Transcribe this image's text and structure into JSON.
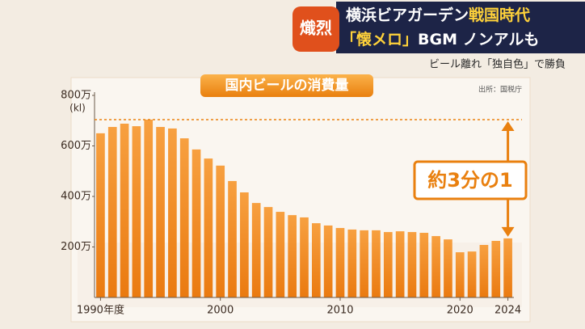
{
  "header": {
    "badge": "熾烈",
    "line1": [
      "横浜ビアガーデン",
      "戦国時代"
    ],
    "line2": [
      "「懐メロ」",
      "BGM ノンアルも"
    ],
    "subline": "ビール離れ「独自色」で勝負"
  },
  "chart_data": {
    "type": "bar",
    "title": "国内ビールの消費量",
    "source": "出所：国税庁",
    "ylabel": "(kl)",
    "annotation": "約3分の1",
    "categories": [
      "1990年度",
      null,
      null,
      null,
      null,
      null,
      null,
      null,
      null,
      null,
      "2000",
      null,
      null,
      null,
      null,
      null,
      null,
      null,
      null,
      null,
      "2010",
      null,
      null,
      null,
      null,
      null,
      null,
      null,
      null,
      null,
      "2020",
      null,
      null,
      null,
      "2024"
    ],
    "values": [
      650,
      675,
      688,
      678,
      704,
      675,
      669,
      630,
      586,
      550,
      522,
      461,
      416,
      374,
      358,
      339,
      326,
      317,
      294,
      285,
      275,
      269,
      266,
      266,
      259,
      262,
      259,
      256,
      243,
      230,
      179,
      182,
      208,
      224,
      234
    ],
    "color": "#f0861a",
    "ylim": [
      0,
      800
    ],
    "yticks": [
      {
        "value": 200,
        "label": "200万"
      },
      {
        "value": 400,
        "label": "400万"
      },
      {
        "value": 600,
        "label": "600万"
      },
      {
        "value": 800,
        "label": "800万"
      }
    ],
    "grid": false
  }
}
